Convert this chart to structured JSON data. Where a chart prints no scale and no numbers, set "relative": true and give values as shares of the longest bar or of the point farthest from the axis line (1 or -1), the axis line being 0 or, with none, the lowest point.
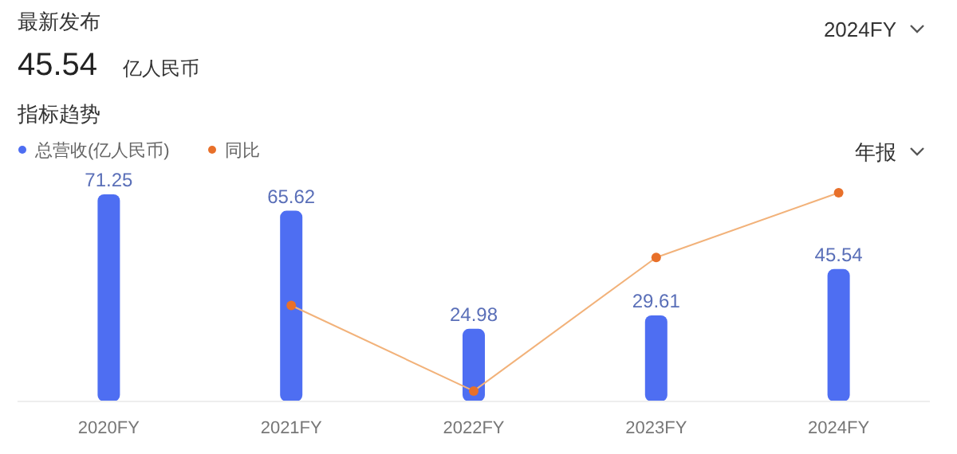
{
  "chart_data": [
    {
      "type": "bar",
      "title": "指标趋势",
      "annotations": [
        "最新发布",
        "45.54",
        "亿人民币",
        "2024FY",
        "年报"
      ],
      "categories": [
        "2020FY",
        "2021FY",
        "2022FY",
        "2023FY",
        "2024FY"
      ],
      "series": [
        {
          "name": "总营收(亿人民币)",
          "color": "#4e6ef2",
          "values": [
            71.25,
            65.62,
            24.98,
            29.61,
            45.54
          ]
        }
      ],
      "data_labels": true,
      "legend": "top left"
    },
    {
      "type": "line",
      "relative": true,
      "categories": [
        null,
        null,
        null,
        null,
        null
      ],
      "series": [
        {
          "name": "同比",
          "color": "#e8702a",
          "values": [
            null,
            0.46,
            0.05,
            0.69,
            1
          ]
        }
      ],
      "legend": "top left",
      "marker": "circle"
    }
  ]
}
